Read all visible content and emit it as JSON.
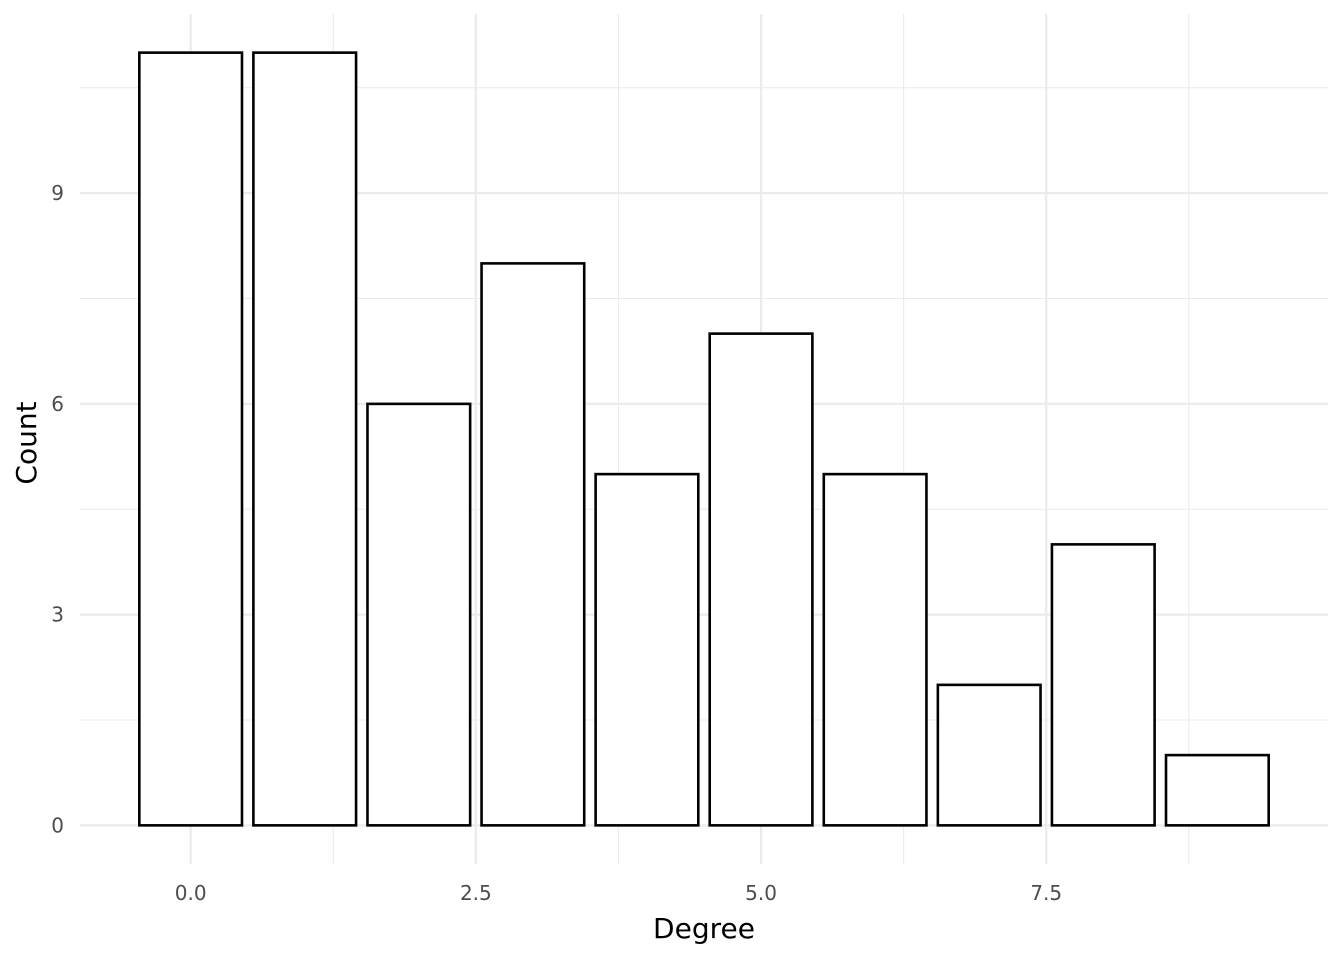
{
  "chart_data": {
    "type": "bar",
    "x": [
      0,
      1,
      2,
      3,
      4,
      5,
      6,
      7,
      8,
      9
    ],
    "values": [
      11,
      11,
      6,
      8,
      5,
      7,
      5,
      2,
      4,
      1
    ],
    "xlabel": "Degree",
    "ylabel": "Count",
    "xlim": [
      -0.97,
      9.97
    ],
    "ylim": [
      -0.55,
      11.55
    ],
    "x_ticks": [
      0.0,
      2.5,
      5.0,
      7.5
    ],
    "x_tick_labels": [
      "0.0",
      "2.5",
      "5.0",
      "7.5"
    ],
    "y_ticks": [
      0,
      3,
      6,
      9
    ],
    "y_tick_labels": [
      "0",
      "3",
      "6",
      "9"
    ],
    "bar_fill": "#ffffff",
    "bar_outline": "#000000",
    "grid": true,
    "grid_color": "#ebebeb",
    "legend": "none"
  }
}
